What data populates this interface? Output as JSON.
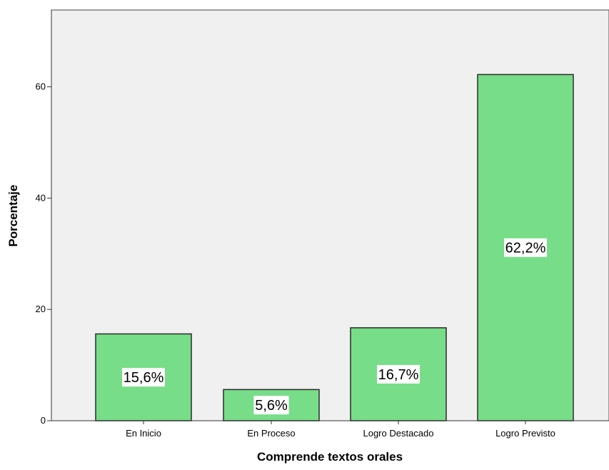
{
  "chart_data": {
    "type": "bar",
    "title": "",
    "xlabel": "Comprende textos orales",
    "ylabel": "Porcentaje",
    "categories": [
      "En Inicio",
      "En Proceso",
      "Logro Destacado",
      "Logro Previsto"
    ],
    "values": [
      15.6,
      5.6,
      16.7,
      62.2
    ],
    "data_labels": [
      "15,6%",
      "5,6%",
      "16,7%",
      "62,2%"
    ],
    "yticks": [
      0,
      20,
      40,
      60
    ],
    "ytick_labels": [
      "0",
      "20",
      "40",
      "60"
    ],
    "ylim": [
      0,
      73.8
    ],
    "grid": false,
    "legend": "none",
    "colors": {
      "bar_fill": "#77dd88",
      "bar_stroke": "#2b2b2b",
      "plot_background": "#f0f0f0",
      "label_box": "#ffffff"
    }
  }
}
